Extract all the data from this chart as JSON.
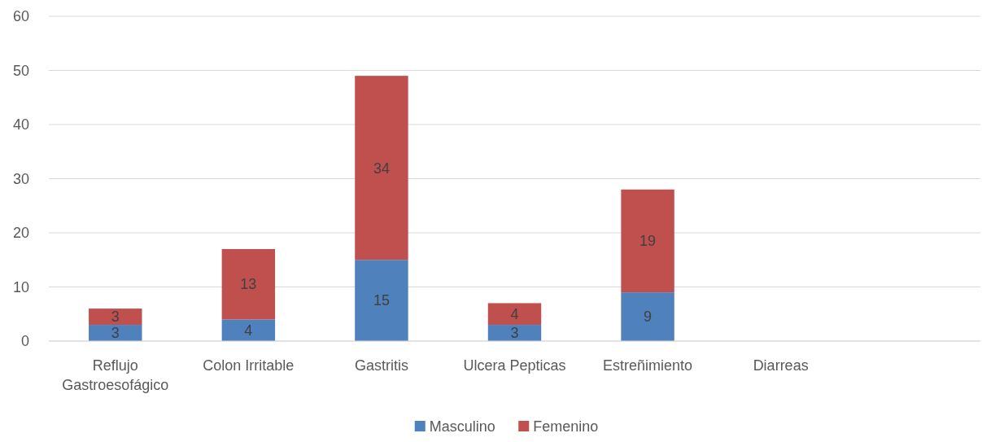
{
  "chart_data": {
    "type": "bar",
    "stacked": true,
    "categories": [
      "Reflujo Gastroesofágico",
      "Colon Irritable",
      "Gastritis",
      "Ulcera Pepticas",
      "Estreñimiento",
      "Diarreas",
      null
    ],
    "series": [
      {
        "name": "Masculino",
        "color": "#4f81bd",
        "values": [
          3,
          4,
          15,
          3,
          9,
          null,
          null
        ]
      },
      {
        "name": "Femenino",
        "color": "#c0504d",
        "values": [
          3,
          13,
          34,
          4,
          19,
          null,
          null
        ]
      }
    ],
    "ylim": [
      0,
      60
    ],
    "yticks": [
      0,
      10,
      20,
      30,
      40,
      50,
      60
    ],
    "grid": "y",
    "legend": "bottom",
    "data_labels": true
  }
}
